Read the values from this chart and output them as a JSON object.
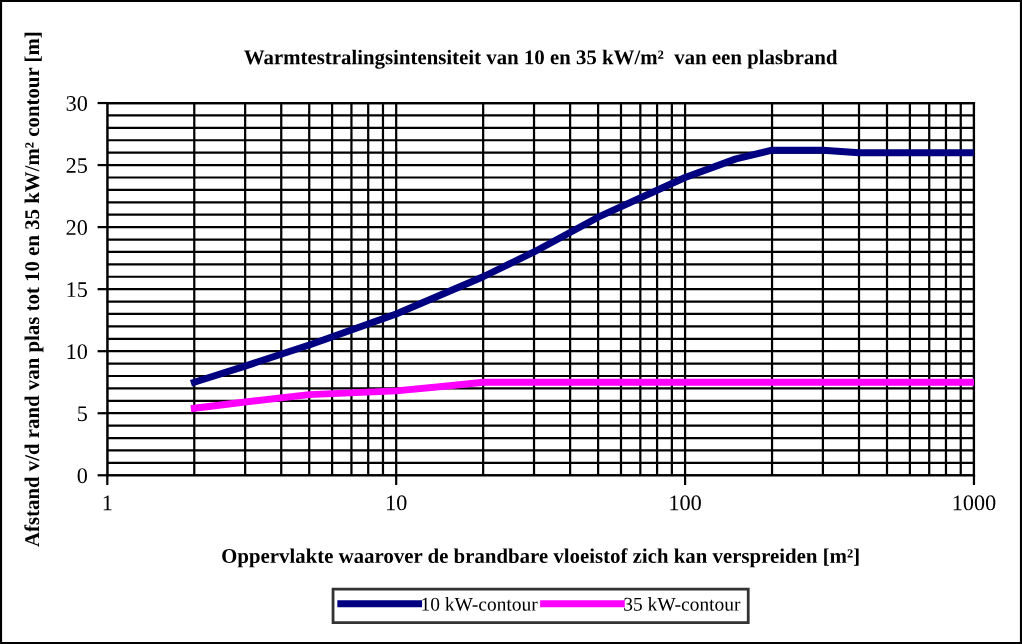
{
  "chart_data": {
    "type": "line",
    "title": "Warmtestralingsintensiteit van 10 en 35 kW/m²  van een plasbrand",
    "xlabel": "Oppervlakte waarover de brandbare vloeistof zich kan verspreiden [m²]",
    "ylabel": "Afstand v/d rand van plas tot 10 en 35 kW/m² contour [m]",
    "log": "x",
    "xlim": [
      1,
      1000
    ],
    "xticks": [
      1,
      10,
      100,
      1000
    ],
    "ylim": [
      0,
      30
    ],
    "yticks": [
      0,
      5,
      10,
      15,
      20,
      25,
      30
    ],
    "grid": true,
    "legend": "bottom",
    "marker": "none",
    "line_style": "solid",
    "series": [
      {
        "name": "10 kW-contour",
        "color": "#000080",
        "x": [
          2,
          3,
          5,
          10,
          20,
          30,
          50,
          100,
          150,
          200,
          300,
          400,
          1000
        ],
        "values": [
          7.5,
          8.8,
          10.5,
          13,
          16,
          18,
          20.8,
          24,
          25.5,
          26.2,
          26.2,
          26,
          26
        ]
      },
      {
        "name": "35 kW-contour",
        "color": "#ff00ff",
        "x": [
          2,
          3,
          5,
          10,
          15,
          20,
          1000
        ],
        "values": [
          5.4,
          5.9,
          6.5,
          6.8,
          7.2,
          7.5,
          7.5
        ]
      }
    ]
  }
}
